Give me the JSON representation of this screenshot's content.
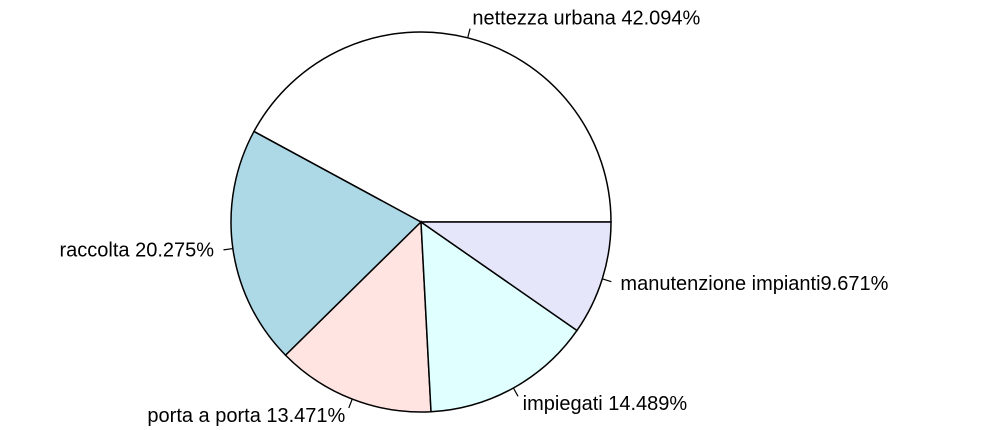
{
  "chart_data": {
    "type": "pie",
    "categories": [
      "nettezza urbana 42.094%",
      "raccolta 20.275%",
      "porta a porta 13.471%",
      "impiegati 14.489%",
      "manutenzione impianti9.671%"
    ],
    "values": [
      42.094,
      20.275,
      13.471,
      14.489,
      9.671
    ],
    "colors": [
      "#FFFFFF",
      "#ADD8E6",
      "#FFE4E1",
      "#E0FFFF",
      "#E6E6FA"
    ],
    "start_angle": 0,
    "direction": "counterclockwise"
  }
}
